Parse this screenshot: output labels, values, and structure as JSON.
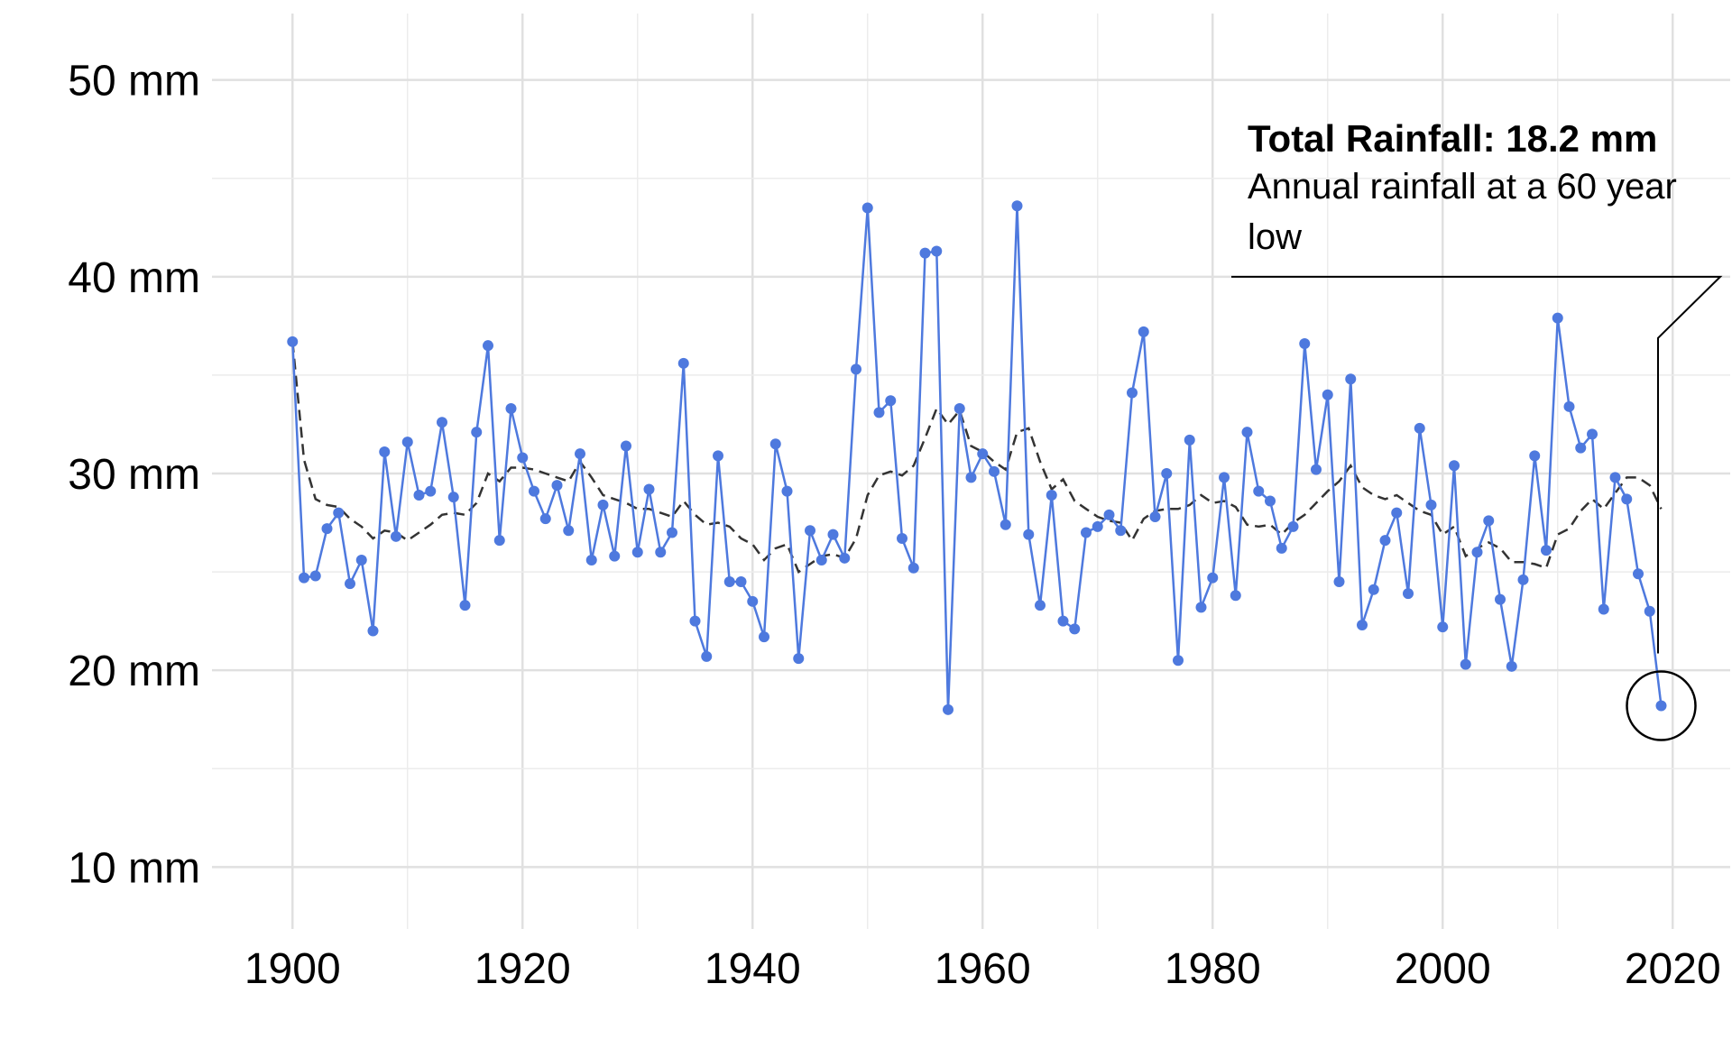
{
  "chart_data": {
    "type": "line",
    "title": "",
    "xlabel": "",
    "ylabel": "",
    "x_range": [
      1893,
      2025
    ],
    "y_range": [
      8,
      52
    ],
    "grid": true,
    "y_ticks": [
      {
        "value": 10,
        "label": "10 mm"
      },
      {
        "value": 20,
        "label": "20 mm"
      },
      {
        "value": 30,
        "label": "30 mm"
      },
      {
        "value": 40,
        "label": "40 mm"
      },
      {
        "value": 50,
        "label": "50 mm"
      }
    ],
    "y_minor_ticks": [
      15,
      25,
      35,
      45
    ],
    "x_ticks": [
      {
        "value": 1900,
        "label": "1900"
      },
      {
        "value": 1920,
        "label": "1920"
      },
      {
        "value": 1940,
        "label": "1940"
      },
      {
        "value": 1960,
        "label": "1960"
      },
      {
        "value": 1980,
        "label": "1980"
      },
      {
        "value": 2000,
        "label": "2000"
      },
      {
        "value": 2020,
        "label": "2020"
      }
    ],
    "x_minor_ticks": [
      1910,
      1930,
      1950,
      1970,
      1990,
      2010
    ],
    "series": [
      {
        "style": "solid-with-points",
        "color": "#4E79DE",
        "x": [
          1900,
          1901,
          1902,
          1903,
          1904,
          1905,
          1906,
          1907,
          1908,
          1909,
          1910,
          1911,
          1912,
          1913,
          1914,
          1915,
          1916,
          1917,
          1918,
          1919,
          1920,
          1921,
          1922,
          1923,
          1924,
          1925,
          1926,
          1927,
          1928,
          1929,
          1930,
          1931,
          1932,
          1933,
          1934,
          1935,
          1936,
          1937,
          1938,
          1939,
          1940,
          1941,
          1942,
          1943,
          1944,
          1945,
          1946,
          1947,
          1948,
          1949,
          1950,
          1951,
          1952,
          1953,
          1954,
          1955,
          1956,
          1957,
          1958,
          1959,
          1960,
          1961,
          1962,
          1963,
          1964,
          1965,
          1966,
          1967,
          1968,
          1969,
          1970,
          1971,
          1972,
          1973,
          1974,
          1975,
          1976,
          1977,
          1978,
          1979,
          1980,
          1981,
          1982,
          1983,
          1984,
          1985,
          1986,
          1987,
          1988,
          1989,
          1990,
          1991,
          1992,
          1993,
          1994,
          1995,
          1996,
          1997,
          1998,
          1999,
          2000,
          2001,
          2002,
          2003,
          2004,
          2005,
          2006,
          2007,
          2008,
          2009,
          2010,
          2011,
          2012,
          2013,
          2014,
          2015,
          2016,
          2017,
          2018,
          2019
        ],
        "values": [
          36.7,
          24.7,
          24.8,
          27.2,
          28.0,
          24.4,
          25.6,
          22.0,
          31.1,
          26.8,
          31.6,
          28.9,
          29.1,
          32.6,
          28.8,
          23.3,
          32.1,
          36.5,
          26.6,
          33.3,
          30.8,
          29.1,
          27.7,
          29.4,
          27.1,
          31.0,
          25.6,
          28.4,
          25.8,
          31.4,
          26.0,
          29.2,
          26.0,
          27.0,
          35.6,
          22.5,
          20.7,
          30.9,
          24.5,
          24.5,
          23.5,
          21.7,
          31.5,
          29.1,
          20.6,
          27.1,
          25.6,
          26.9,
          25.7,
          35.3,
          43.5,
          33.1,
          33.7,
          26.7,
          25.2,
          41.2,
          41.3,
          18.0,
          33.3,
          29.8,
          31.0,
          30.1,
          27.4,
          43.6,
          26.9,
          23.3,
          28.9,
          22.5,
          22.1,
          27.0,
          27.3,
          27.9,
          27.1,
          34.1,
          37.2,
          27.8,
          30.0,
          20.5,
          31.7,
          23.2,
          24.7,
          29.8,
          23.8,
          32.1,
          29.1,
          28.6,
          26.2,
          27.3,
          36.6,
          30.2,
          34.0,
          24.5,
          34.8,
          22.3,
          24.1,
          26.6,
          28.0,
          23.9,
          32.3,
          28.4,
          22.2,
          30.4,
          20.3,
          26.0,
          27.6,
          23.6,
          20.2,
          24.6,
          30.9,
          26.1,
          37.9,
          33.4,
          31.3,
          32.0,
          23.1,
          29.8,
          28.7,
          24.9,
          23.0,
          18.2
        ]
      },
      {
        "style": "dashed",
        "color": "#333333",
        "x": [
          1900,
          1901,
          1902,
          1903,
          1904,
          1905,
          1906,
          1907,
          1908,
          1909,
          1910,
          1911,
          1912,
          1913,
          1914,
          1915,
          1916,
          1917,
          1918,
          1919,
          1920,
          1921,
          1922,
          1923,
          1924,
          1925,
          1926,
          1927,
          1928,
          1929,
          1930,
          1931,
          1932,
          1933,
          1934,
          1935,
          1936,
          1937,
          1938,
          1939,
          1940,
          1941,
          1942,
          1943,
          1944,
          1945,
          1946,
          1947,
          1948,
          1949,
          1950,
          1951,
          1952,
          1953,
          1954,
          1955,
          1956,
          1957,
          1958,
          1959,
          1960,
          1961,
          1962,
          1963,
          1964,
          1965,
          1966,
          1967,
          1968,
          1969,
          1970,
          1971,
          1972,
          1973,
          1974,
          1975,
          1976,
          1977,
          1978,
          1979,
          1980,
          1981,
          1982,
          1983,
          1984,
          1985,
          1986,
          1987,
          1988,
          1989,
          1990,
          1991,
          1992,
          1993,
          1994,
          1995,
          1996,
          1997,
          1998,
          1999,
          2000,
          2001,
          2002,
          2003,
          2004,
          2005,
          2006,
          2007,
          2008,
          2009,
          2010,
          2011,
          2012,
          2013,
          2014,
          2015,
          2016,
          2017,
          2018,
          2019
        ],
        "values": [
          36.7,
          30.7,
          28.7,
          28.4,
          28.3,
          27.7,
          27.3,
          26.7,
          27.1,
          27.0,
          26.6,
          27.0,
          27.4,
          27.9,
          28.0,
          27.9,
          28.5,
          30.0,
          29.6,
          30.3,
          30.3,
          30.2,
          30.0,
          29.8,
          29.6,
          30.6,
          29.8,
          28.9,
          28.7,
          28.5,
          28.2,
          28.2,
          28.0,
          27.8,
          28.6,
          27.9,
          27.4,
          27.5,
          27.3,
          26.7,
          26.4,
          25.6,
          26.2,
          26.4,
          25.0,
          25.4,
          25.8,
          25.9,
          25.7,
          26.7,
          28.9,
          29.9,
          30.1,
          29.9,
          30.4,
          31.8,
          33.3,
          32.5,
          33.2,
          31.4,
          31.1,
          30.6,
          30.2,
          32.1,
          32.3,
          30.6,
          29.2,
          29.7,
          28.6,
          28.2,
          27.8,
          27.6,
          27.5,
          26.6,
          27.7,
          28.1,
          28.2,
          28.2,
          28.4,
          28.9,
          28.5,
          28.6,
          28.3,
          27.4,
          27.3,
          27.4,
          26.9,
          27.5,
          27.9,
          28.5,
          29.1,
          29.6,
          30.4,
          29.3,
          28.9,
          28.7,
          28.9,
          28.5,
          28.1,
          27.9,
          26.9,
          27.3,
          25.8,
          26.2,
          26.5,
          26.2,
          25.5,
          25.5,
          25.4,
          25.2,
          26.9,
          27.2,
          28.1,
          28.7,
          28.2,
          29.0,
          29.8,
          29.8,
          29.4,
          28.2
        ]
      }
    ],
    "annotation": {
      "title": "Total Rainfall: 18.2 mm",
      "line1": "Annual rainfall at a 60 year",
      "line2": "low",
      "target_x": 2019,
      "target_y": 18.2
    }
  }
}
